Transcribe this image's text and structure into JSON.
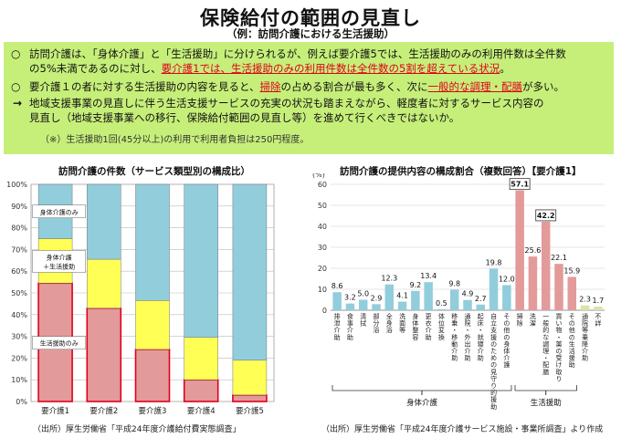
{
  "title": "保険給付の範囲の見直し",
  "subtitle": "（例：訪問介護における生活援助）",
  "box": {
    "bullet1": "○",
    "b1_l1": "訪問介護は、「身体介護」と「生活援助」に分けられるが、例えば要介護5では、生活援助のみの利用件数は全件数",
    "b1_l2_a": "の5%未満であるのに対し、",
    "b1_l2_red": "要介護1では、生活援助のみの利用件数は全件数の5割を超えている状況",
    "b1_l2_b": "。",
    "bullet2": "○",
    "b2_a": "要介護１の者に対する生活援助の内容を見ると、",
    "b2_red1": "掃除",
    "b2_b": "の占める割合が最も多く、次に",
    "b2_red2": "一般的な調理・配膳",
    "b2_c": "が多い。",
    "arrow": "→",
    "b3_l1": "地域支援事業の見直しに伴う生活支援サービスの充実の状況も踏まえながら、軽度者に対するサービス内容の",
    "b3_l2": "見直し（地域支援事業への移行、保険給付範囲の見直し等）を進めて行くべきではないか。",
    "note": "（※）生活援助1回(45分以上)の利用で利用者負担は250円程度。"
  },
  "left_source": "（出所）厚生労働省「平成24年度介護給付費実態調査」",
  "right_source": "（出所）厚生労働省「平成24年度介護サービス施設・事業所調査」より作成",
  "chart_data": [
    {
      "type": "bar",
      "stacked": true,
      "title": "訪問介護の件数（サービス類型別の構成比）",
      "categories": [
        "要介護1",
        "要介護2",
        "要介護3",
        "要介護4",
        "要介護5"
      ],
      "series": [
        {
          "name": "生活援助のみ",
          "values": [
            54.5,
            43,
            24,
            10,
            3
          ],
          "color": "#e39a9a"
        },
        {
          "name": "身体介護＋生活援助",
          "values": [
            20.5,
            22.5,
            22.5,
            19.5,
            16
          ],
          "color": "#ffff55"
        },
        {
          "name": "身体介護のみ",
          "values": [
            25,
            34.5,
            53.5,
            70.5,
            81
          ],
          "color": "#92cddc"
        }
      ],
      "ylim": [
        0,
        100
      ],
      "yticks": [
        "0%",
        "10%",
        "20%",
        "30%",
        "40%",
        "50%",
        "60%",
        "70%",
        "80%",
        "90%",
        "100%"
      ],
      "legend_labels": [
        "身体介護のみ",
        "身体介護\n＋生活援助",
        "生活援助のみ"
      ]
    },
    {
      "type": "bar",
      "title": "訪問介護の提供内容の構成割合（複数回答）【要介護1】",
      "ylabel": "(%)",
      "ylim": [
        0,
        60
      ],
      "yticks": [
        "0",
        "10",
        "20",
        "30",
        "40",
        "50",
        "60"
      ],
      "categories": [
        "排泄介助",
        "食事介助",
        "清拭",
        "部分浴",
        "全身浴",
        "洗面等",
        "身体整容",
        "更衣介助",
        "体位変換",
        "移乗・移動介助",
        "通院・外出介助",
        "起床・就寝介助",
        "自立支援のための見守り的援助",
        "その他の身体介護",
        "掃除",
        "洗濯",
        "一般的な調理・配膳",
        "買い物・薬の受け取り",
        "その他の生活援助",
        "通院等乗降介助",
        "不詳"
      ],
      "values": [
        8.6,
        3.2,
        5.0,
        2.9,
        12.3,
        4.1,
        9.2,
        13.4,
        0.5,
        9.8,
        4.9,
        2.7,
        19.8,
        12.0,
        57.1,
        25.6,
        42.2,
        22.1,
        15.9,
        2.3,
        1.7
      ],
      "value_labels": [
        "8.6",
        "3.2",
        "5.0",
        "2.9",
        "12.3",
        "4.1",
        "9.2",
        "13.4",
        "0.5",
        "9.8",
        "4.9",
        "2.7",
        "19.8",
        "12.0",
        "57.1",
        "25.6",
        "42.2",
        "22.1",
        "15.9",
        "2.3",
        "1.7"
      ],
      "group": [
        "body",
        "body",
        "body",
        "body",
        "body",
        "body",
        "body",
        "body",
        "body",
        "body",
        "body",
        "body",
        "body",
        "body",
        "life",
        "life",
        "life",
        "life",
        "life",
        "other",
        "other"
      ],
      "colors": {
        "body": "#92cddc",
        "life": "#e39a9a",
        "other": "#d7e4a8"
      },
      "boxed_labels": [
        "57.1",
        "42.2"
      ],
      "group_labels": {
        "body": "身体介護",
        "life": "生活援助"
      }
    }
  ]
}
